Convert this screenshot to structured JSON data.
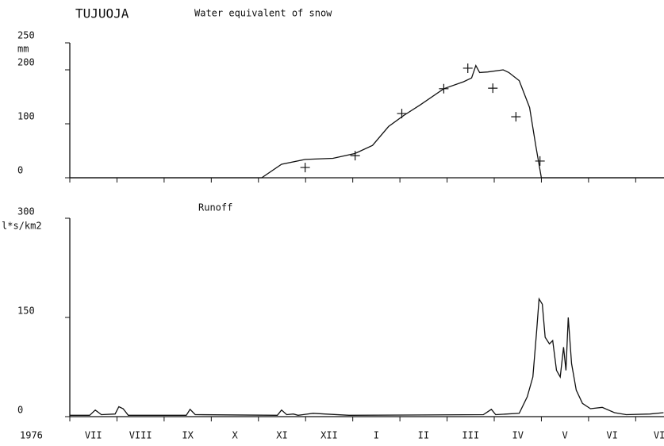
{
  "chart_data": [
    {
      "type": "line",
      "station": "TUJUOJA",
      "title": "Water equivalent of snow",
      "y_label": "mm",
      "xlim": [
        0,
        12.6
      ],
      "ylim": [
        0,
        250
      ],
      "yticks": [
        0,
        100,
        200,
        250
      ],
      "series": [
        {
          "color": "#111111",
          "x": [
            0,
            4.07,
            4.49,
            4.99,
            5.58,
            6.05,
            6.42,
            6.76,
            7.09,
            7.43,
            7.93,
            8.35,
            8.52,
            8.61,
            8.69,
            8.86,
            9.19,
            9.31,
            9.53,
            9.75,
            9.88,
            10.0,
            12.6
          ],
          "values": [
            0,
            0,
            25,
            34,
            36,
            45,
            60,
            95,
            116,
            135,
            165,
            178,
            185,
            208,
            195,
            196,
            200,
            195,
            180,
            130,
            60,
            0,
            0
          ]
        },
        {
          "type": "scatter",
          "color": "#111111",
          "x": [
            4.99,
            6.05,
            7.04,
            7.93,
            8.44,
            8.97,
            9.46,
            9.97
          ],
          "values": [
            19,
            41,
            119,
            165,
            203,
            166,
            113,
            31
          ]
        }
      ]
    },
    {
      "type": "line",
      "title": "Runoff",
      "y_label": "l*s/km2",
      "year": "1976",
      "categories": [
        "VII",
        "VIII",
        "IX",
        "X",
        "XI",
        "XII",
        "I",
        "II",
        "III",
        "IV",
        "V",
        "VI",
        "VI"
      ],
      "xlim": [
        0,
        12.6
      ],
      "ylim": [
        0,
        300
      ],
      "yticks": [
        0,
        150,
        300
      ],
      "series": [
        {
          "color": "#111111",
          "x": [
            0,
            0.42,
            0.54,
            0.67,
            0.96,
            1.04,
            1.13,
            1.24,
            2.47,
            2.55,
            2.66,
            4.4,
            4.49,
            4.6,
            4.74,
            4.84,
            5.16,
            5.41,
            5.92,
            8.77,
            8.94,
            9.03,
            9.53,
            9.7,
            9.82,
            9.9,
            9.95,
            10.02,
            10.08,
            10.17,
            10.24,
            10.32,
            10.4,
            10.47,
            10.52,
            10.57,
            10.64,
            10.74,
            10.87,
            11.04,
            11.29,
            11.55,
            11.8,
            12.3,
            12.59
          ],
          "values": [
            2,
            2,
            10,
            3,
            4,
            15,
            12,
            2,
            2,
            11,
            3,
            2,
            10,
            3,
            4,
            2,
            5,
            4,
            2,
            3,
            11,
            3,
            5,
            30,
            60,
            130,
            178,
            170,
            120,
            110,
            115,
            70,
            60,
            105,
            70,
            150,
            80,
            40,
            20,
            12,
            14,
            6,
            3,
            4,
            6
          ]
        }
      ]
    }
  ]
}
